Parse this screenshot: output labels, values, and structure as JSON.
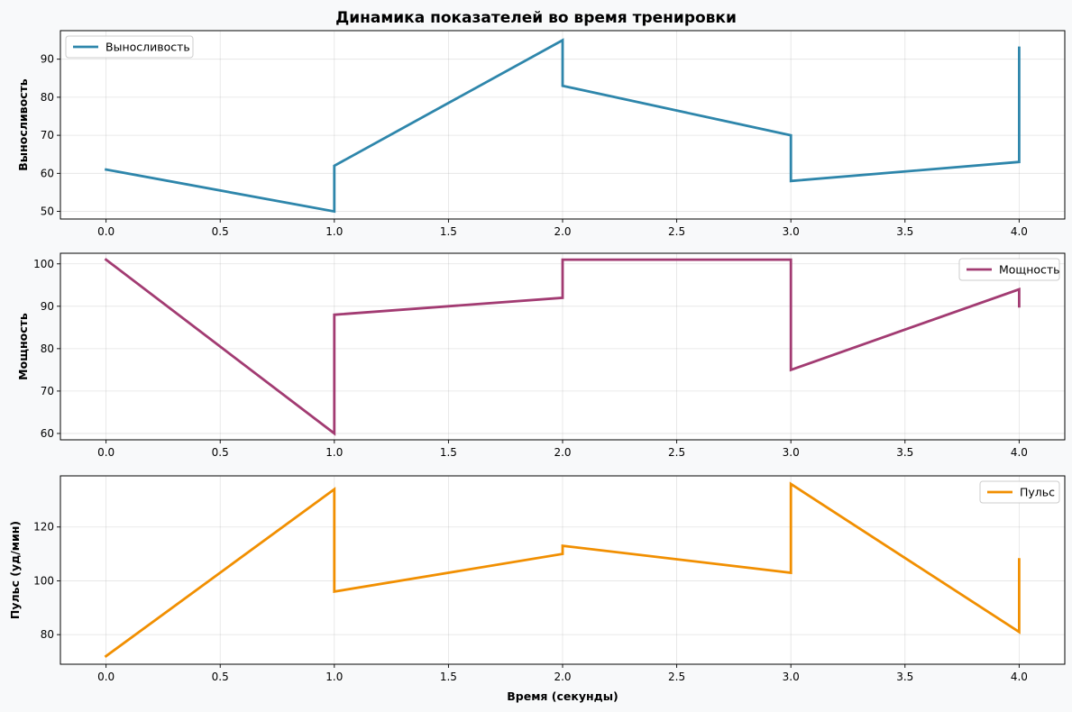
{
  "figure": {
    "title": "Динамика показателей во время тренировки"
  },
  "chart_data": [
    {
      "type": "line",
      "ylabel": "Выносливость",
      "xlabel": "",
      "xlim": [
        -0.2,
        4.2
      ],
      "ylim": [
        48,
        97.5
      ],
      "xticks": [
        0.0,
        0.5,
        1.0,
        1.5,
        2.0,
        2.5,
        3.0,
        3.5,
        4.0
      ],
      "xtick_labels": [
        "0.0",
        "0.5",
        "1.0",
        "1.5",
        "2.0",
        "2.5",
        "3.0",
        "3.5",
        "4.0"
      ],
      "yticks": [
        50,
        60,
        70,
        80,
        90
      ],
      "ytick_labels": [
        "50",
        "60",
        "70",
        "80",
        "90"
      ],
      "grid": true,
      "legend_position": "upper-left",
      "series": [
        {
          "name": "Выносливость",
          "color": "#2e86ab",
          "x": [
            0,
            1,
            1,
            2,
            2,
            3,
            3,
            4,
            4
          ],
          "y": [
            61,
            50,
            62,
            95,
            83,
            70,
            58,
            63,
            93
          ]
        }
      ]
    },
    {
      "type": "line",
      "ylabel": "Мощность",
      "xlabel": "",
      "xlim": [
        -0.2,
        4.2
      ],
      "ylim": [
        58.5,
        102.5
      ],
      "xticks": [
        0.0,
        0.5,
        1.0,
        1.5,
        2.0,
        2.5,
        3.0,
        3.5,
        4.0
      ],
      "xtick_labels": [
        "0.0",
        "0.5",
        "1.0",
        "1.5",
        "2.0",
        "2.5",
        "3.0",
        "3.5",
        "4.0"
      ],
      "yticks": [
        60,
        70,
        80,
        90,
        100
      ],
      "ytick_labels": [
        "60",
        "70",
        "80",
        "90",
        "100"
      ],
      "grid": true,
      "legend_position": "upper-right",
      "series": [
        {
          "name": "Мощность",
          "color": "#a23b72",
          "x": [
            0,
            1,
            1,
            2,
            2,
            3,
            3,
            4,
            4
          ],
          "y": [
            101,
            60,
            88,
            92,
            101,
            101,
            75,
            94,
            90
          ]
        }
      ]
    },
    {
      "type": "line",
      "ylabel": "Пульс (уд/мин)",
      "xlabel": "Время (секунды)",
      "xlim": [
        -0.2,
        4.2
      ],
      "ylim": [
        69,
        139
      ],
      "xticks": [
        0.0,
        0.5,
        1.0,
        1.5,
        2.0,
        2.5,
        3.0,
        3.5,
        4.0
      ],
      "xtick_labels": [
        "0.0",
        "0.5",
        "1.0",
        "1.5",
        "2.0",
        "2.5",
        "3.0",
        "3.5",
        "4.0"
      ],
      "yticks": [
        80,
        100,
        120
      ],
      "ytick_labels": [
        "80",
        "100",
        "120"
      ],
      "grid": true,
      "legend_position": "upper-right",
      "series": [
        {
          "name": "Пульс",
          "color": "#f18f01",
          "x": [
            0,
            1,
            1,
            2,
            2,
            3,
            3,
            4,
            4
          ],
          "y": [
            72,
            134,
            96,
            110,
            113,
            103,
            136,
            81,
            108
          ]
        }
      ]
    }
  ]
}
